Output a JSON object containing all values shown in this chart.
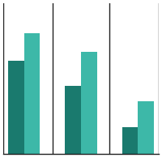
{
  "bar1_dark": [
    62,
    45,
    18
  ],
  "bar2_light": [
    80,
    68,
    35
  ],
  "color_dark": "#1a7a6e",
  "color_light": "#3db8a8",
  "ylim": [
    0,
    100
  ],
  "background": "#ffffff",
  "bar_width": 0.42,
  "group_centers": [
    0.55,
    2.05,
    3.55
  ],
  "xlim": [
    0.0,
    4.1
  ],
  "spine_color": "#222222",
  "vline_positions": [
    0.0,
    1.3,
    2.8,
    4.1
  ]
}
